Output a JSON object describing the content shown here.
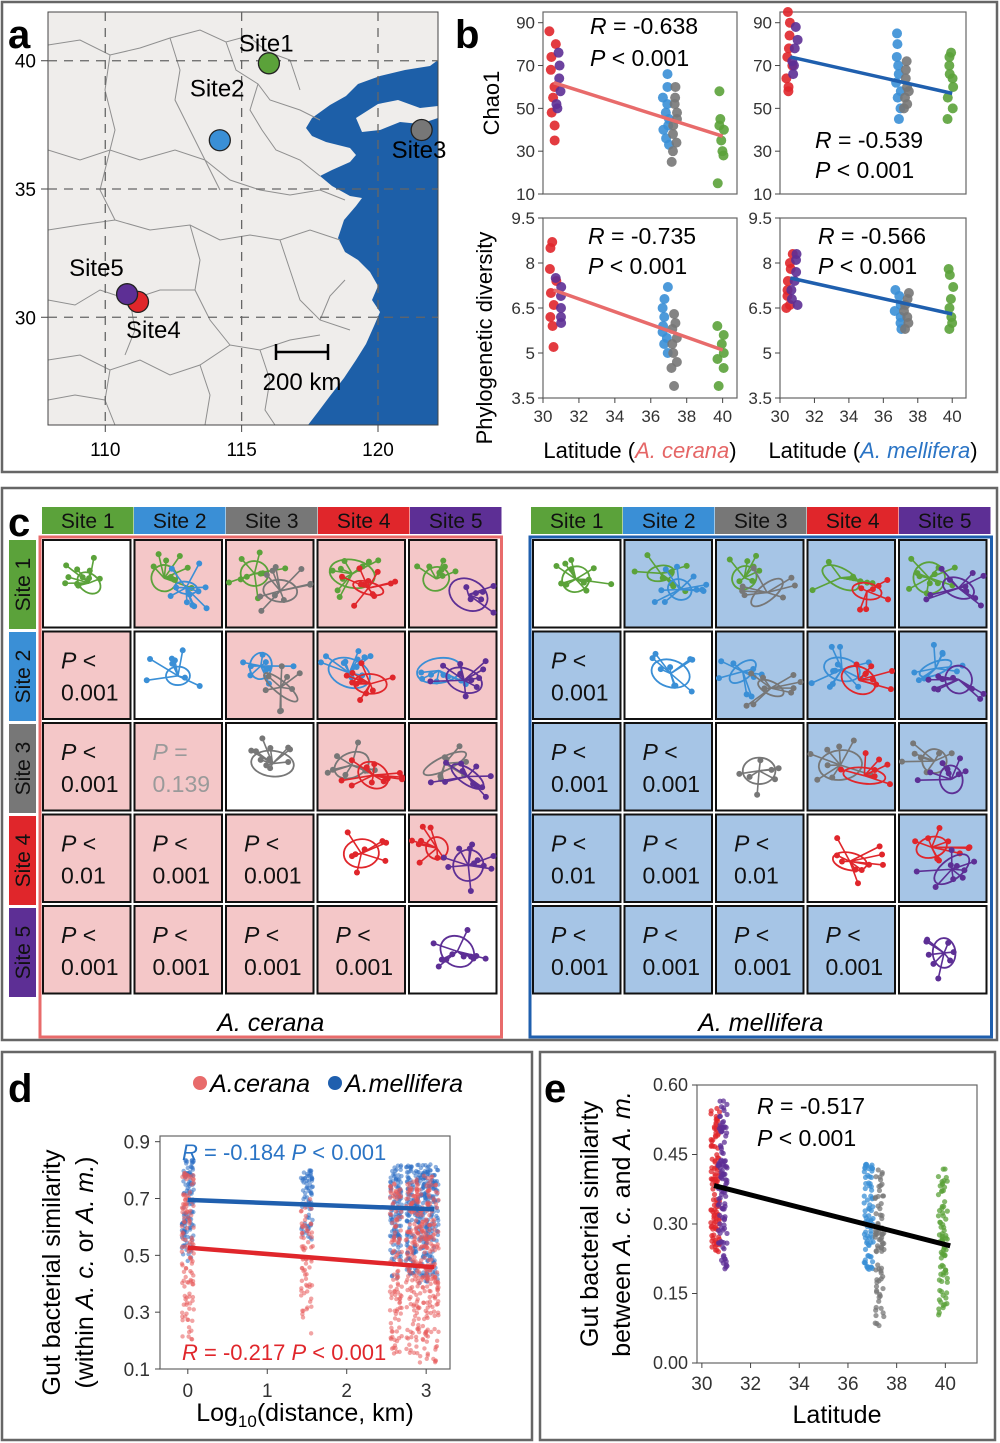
{
  "colors": {
    "site1": "#5ba23a",
    "site2": "#3a8fd6",
    "site3": "#777777",
    "site4": "#e0262b",
    "site5": "#5d2f95",
    "cerana_line": "#e86b6b",
    "mellifera_line": "#1f5fae",
    "cerana_bg": "#f4c7c8",
    "mellifera_bg": "#a6c5e6",
    "sea": "#1d5fa8",
    "land": "#efedeb",
    "cerana_axis": "#e56666",
    "mellifera_axis": "#2a74c5",
    "gray_text": "#9a9a9a"
  },
  "panels": {
    "a": "a",
    "b": "b",
    "c": "c",
    "d": "d",
    "e": "e"
  },
  "map": {
    "sites": [
      {
        "label": "Site1",
        "lon": 116.0,
        "lat": 39.9,
        "color": "#5ba23a"
      },
      {
        "label": "Site2",
        "lon": 114.2,
        "lat": 36.9,
        "color": "#3a8fd6"
      },
      {
        "label": "Site3",
        "lon": 121.6,
        "lat": 37.3,
        "color": "#777777"
      },
      {
        "label": "Site4",
        "lon": 111.2,
        "lat": 30.6,
        "color": "#e0262b"
      },
      {
        "label": "Site5",
        "lon": 110.8,
        "lat": 30.9,
        "color": "#5d2f95"
      }
    ],
    "x_ticks": [
      "110",
      "115",
      "120"
    ],
    "y_ticks": [
      "40",
      "35",
      "30"
    ],
    "scale_label": "200 km"
  },
  "chart_data": [
    {
      "id": "b-chao1-cerana",
      "type": "scatter",
      "ylabel": "Chao1",
      "ylim": [
        10,
        95
      ],
      "yticks": [
        10,
        30,
        50,
        70,
        90
      ],
      "xlim": [
        30,
        40.8
      ],
      "xticks": [
        30,
        32,
        34,
        36,
        38,
        40
      ],
      "stat_r": "= -0.638",
      "stat_p": "< 0.001",
      "fit": {
        "x0": 30.6,
        "y0": 62,
        "x1": 40,
        "y1": 37
      },
      "groups": [
        {
          "site": 4,
          "x": 30.55,
          "values": [
            86,
            80,
            74,
            68,
            60,
            55,
            48,
            42,
            35
          ]
        },
        {
          "site": 5,
          "x": 30.85,
          "values": [
            76,
            70,
            64,
            58,
            52,
            50
          ]
        },
        {
          "site": 2,
          "x": 36.85,
          "values": [
            66,
            60,
            55,
            52,
            48,
            45,
            42,
            40,
            36,
            33
          ]
        },
        {
          "site": 3,
          "x": 37.3,
          "values": [
            60,
            55,
            52,
            48,
            45,
            42,
            38,
            34,
            30,
            25
          ]
        },
        {
          "site": 1,
          "x": 39.9,
          "values": [
            58,
            45,
            42,
            40,
            35,
            30,
            28,
            15
          ]
        }
      ]
    },
    {
      "id": "b-chao1-mellifera",
      "type": "scatter",
      "ylim": [
        10,
        95
      ],
      "yticks": [
        10,
        30,
        50,
        70,
        90
      ],
      "xlim": [
        30,
        40.8
      ],
      "xticks": [
        30,
        32,
        34,
        36,
        38,
        40
      ],
      "stat_r": "= -0.539",
      "stat_p": "< 0.001",
      "fit": {
        "x0": 30.6,
        "y0": 74,
        "x1": 40,
        "y1": 57
      },
      "groups": [
        {
          "site": 4,
          "x": 30.55,
          "values": [
            95,
            90,
            84,
            78,
            74,
            70,
            64,
            60,
            58
          ]
        },
        {
          "site": 5,
          "x": 30.85,
          "values": [
            88,
            82,
            78,
            72,
            70,
            66
          ]
        },
        {
          "site": 2,
          "x": 36.85,
          "values": [
            85,
            80,
            74,
            70,
            66,
            62,
            58,
            55,
            50,
            45
          ]
        },
        {
          "site": 3,
          "x": 37.3,
          "values": [
            72,
            68,
            64,
            60,
            58,
            55,
            52,
            50
          ]
        },
        {
          "site": 1,
          "x": 39.9,
          "values": [
            76,
            74,
            70,
            66,
            64,
            60,
            55,
            50,
            45
          ]
        }
      ]
    },
    {
      "id": "b-pd-cerana",
      "type": "scatter",
      "ylabel": "Phylogenetic diversity",
      "ylim": [
        3.5,
        9.5
      ],
      "yticks": [
        3.5,
        5.0,
        6.5,
        8.0,
        9.5
      ],
      "xlim": [
        30,
        40.8
      ],
      "xticks": [
        30,
        32,
        34,
        36,
        38,
        40
      ],
      "xlabel_prefix": "Latitude (",
      "xlabel_species": "A. cerana",
      "xlabel_suffix": ")",
      "stat_r": "= -0.735",
      "stat_p": "< 0.001",
      "fit": {
        "x0": 30.6,
        "y0": 7.1,
        "x1": 40,
        "y1": 5.1
      },
      "groups": [
        {
          "site": 4,
          "x": 30.55,
          "values": [
            8.7,
            8.5,
            7.8,
            7.4,
            7.0,
            6.6,
            6.2,
            5.9,
            5.2
          ]
        },
        {
          "site": 5,
          "x": 30.85,
          "values": [
            7.5,
            7.2,
            6.9,
            6.5,
            6.2,
            6.0
          ]
        },
        {
          "site": 2,
          "x": 36.85,
          "values": [
            7.2,
            6.8,
            6.5,
            6.2,
            5.9,
            5.7,
            5.5,
            5.3,
            5.0
          ]
        },
        {
          "site": 3,
          "x": 37.3,
          "values": [
            6.3,
            6.0,
            5.8,
            5.5,
            5.3,
            5.0,
            4.7,
            4.5,
            3.9
          ]
        },
        {
          "site": 1,
          "x": 39.9,
          "values": [
            5.9,
            5.6,
            5.3,
            5.0,
            4.8,
            4.5,
            3.9
          ]
        }
      ]
    },
    {
      "id": "b-pd-mellifera",
      "type": "scatter",
      "ylim": [
        3.5,
        9.5
      ],
      "yticks": [
        3.5,
        5.0,
        6.5,
        8.0,
        9.5
      ],
      "xlim": [
        30,
        40.8
      ],
      "xticks": [
        30,
        32,
        34,
        36,
        38,
        40
      ],
      "xlabel_prefix": "Latitude (",
      "xlabel_species": "A. mellifera",
      "xlabel_suffix": ")",
      "stat_r": "= -0.566",
      "stat_p": "< 0.001",
      "fit": {
        "x0": 30.6,
        "y0": 7.5,
        "x1": 40,
        "y1": 6.3
      },
      "groups": [
        {
          "site": 4,
          "x": 30.55,
          "values": [
            8.3,
            8.0,
            7.8,
            7.4,
            7.1,
            6.9,
            6.6,
            6.5
          ]
        },
        {
          "site": 5,
          "x": 30.85,
          "values": [
            8.3,
            8.1,
            7.7,
            7.4,
            7.1,
            6.8,
            6.6
          ]
        },
        {
          "site": 2,
          "x": 36.85,
          "values": [
            7.1,
            6.9,
            6.6,
            6.4,
            6.2,
            6.0,
            5.8
          ]
        },
        {
          "site": 3,
          "x": 37.3,
          "values": [
            7.0,
            6.8,
            6.6,
            6.4,
            6.2,
            6.0,
            5.8
          ]
        },
        {
          "site": 1,
          "x": 39.9,
          "values": [
            7.8,
            7.6,
            7.2,
            6.8,
            6.5,
            6.2,
            6.0,
            5.8
          ]
        }
      ]
    },
    {
      "id": "d",
      "type": "scatter",
      "ylabel_line1": "Gut bacterial similarity",
      "ylabel_line2": "(within A. c. or A. m.)",
      "xlabel_main": "Log",
      "xlabel_sub": "10",
      "xlabel_rest": "(distance, km)",
      "xlim": [
        -0.35,
        3.3
      ],
      "xticks": [
        0,
        1,
        2,
        3
      ],
      "ylim": [
        0.1,
        0.92
      ],
      "yticks": [
        0.1,
        0.3,
        0.5,
        0.7,
        0.9
      ],
      "legend": [
        "A.cerana",
        "A.mellifera"
      ],
      "mellifera_stat_r": "= -0.184",
      "mellifera_stat_p": "< 0.001",
      "cerana_stat_r": "= -0.217",
      "cerana_stat_p": "< 0.001",
      "series": [
        {
          "name": "A.mellifera",
          "fit": [
            [
              0,
              0.695
            ],
            [
              3.1,
              0.662
            ]
          ],
          "clusters": [
            {
              "x": 0.0,
              "lo": 0.48,
              "hi": 0.84
            },
            {
              "x": 1.5,
              "lo": 0.55,
              "hi": 0.8
            },
            {
              "x": 2.62,
              "lo": 0.42,
              "hi": 0.82
            },
            {
              "x": 2.82,
              "lo": 0.42,
              "hi": 0.82
            },
            {
              "x": 2.95,
              "lo": 0.4,
              "hi": 0.82
            },
            {
              "x": 3.08,
              "lo": 0.4,
              "hi": 0.82
            }
          ]
        },
        {
          "name": "A.cerana",
          "fit": [
            [
              0,
              0.527
            ],
            [
              3.1,
              0.458
            ]
          ],
          "clusters": [
            {
              "x": 0.0,
              "lo": 0.18,
              "hi": 0.8
            },
            {
              "x": 1.5,
              "lo": 0.22,
              "hi": 0.7
            },
            {
              "x": 2.62,
              "lo": 0.14,
              "hi": 0.76
            },
            {
              "x": 2.82,
              "lo": 0.14,
              "hi": 0.76
            },
            {
              "x": 2.95,
              "lo": 0.12,
              "hi": 0.78
            },
            {
              "x": 3.08,
              "lo": 0.12,
              "hi": 0.78
            }
          ]
        }
      ]
    },
    {
      "id": "e",
      "type": "scatter",
      "ylabel_line1": "Gut bacterial similarity",
      "ylabel_line2": "between A. c. and A. m.",
      "xlabel": "Latitude",
      "xlim": [
        29.8,
        41.3
      ],
      "xticks": [
        30,
        32,
        34,
        36,
        38,
        40
      ],
      "ylim": [
        0.0,
        0.6
      ],
      "yticks": [
        0.0,
        0.15,
        0.3,
        0.45,
        0.6
      ],
      "stat_r": "= -0.517",
      "stat_p": "< 0.001",
      "fit": {
        "x0": 30.5,
        "y0": 0.383,
        "x1": 40.2,
        "y1": 0.253
      },
      "groups": [
        {
          "site": 4,
          "x": 30.55,
          "lo": 0.24,
          "hi": 0.55
        },
        {
          "site": 5,
          "x": 30.85,
          "lo": 0.2,
          "hi": 0.57
        },
        {
          "site": 2,
          "x": 36.85,
          "lo": 0.2,
          "hi": 0.43
        },
        {
          "site": 3,
          "x": 37.3,
          "lo": 0.08,
          "hi": 0.43
        },
        {
          "site": 1,
          "x": 39.9,
          "lo": 0.1,
          "hi": 0.42
        }
      ]
    }
  ],
  "panel_c": {
    "site_labels": [
      "Site 1",
      "Site 2",
      "Site 3",
      "Site 4",
      "Site 5"
    ],
    "cerana_title": "A. cerana",
    "mellifera_title": "A. mellifera",
    "cerana_p": [
      [
        null,
        null,
        null,
        null,
        null
      ],
      [
        "< 0.001",
        null,
        null,
        null,
        null
      ],
      [
        "< 0.001",
        "= 0.139",
        null,
        null,
        null
      ],
      [
        "< 0.01",
        "< 0.001",
        "< 0.001",
        null,
        null
      ],
      [
        "< 0.001",
        "< 0.001",
        "< 0.001",
        "< 0.001",
        null
      ]
    ],
    "mellifera_p": [
      [
        null,
        null,
        null,
        null,
        null
      ],
      [
        "< 0.001",
        null,
        null,
        null,
        null
      ],
      [
        "< 0.001",
        "< 0.001",
        null,
        null,
        null
      ],
      [
        "< 0.01",
        "< 0.001",
        "< 0.01",
        null,
        null
      ],
      [
        "< 0.001",
        "< 0.001",
        "< 0.001",
        "< 0.001",
        null
      ]
    ],
    "nonsignificant": [
      [
        2,
        1,
        "cerana"
      ]
    ]
  },
  "labels": {
    "R": "R",
    "P": "P"
  }
}
